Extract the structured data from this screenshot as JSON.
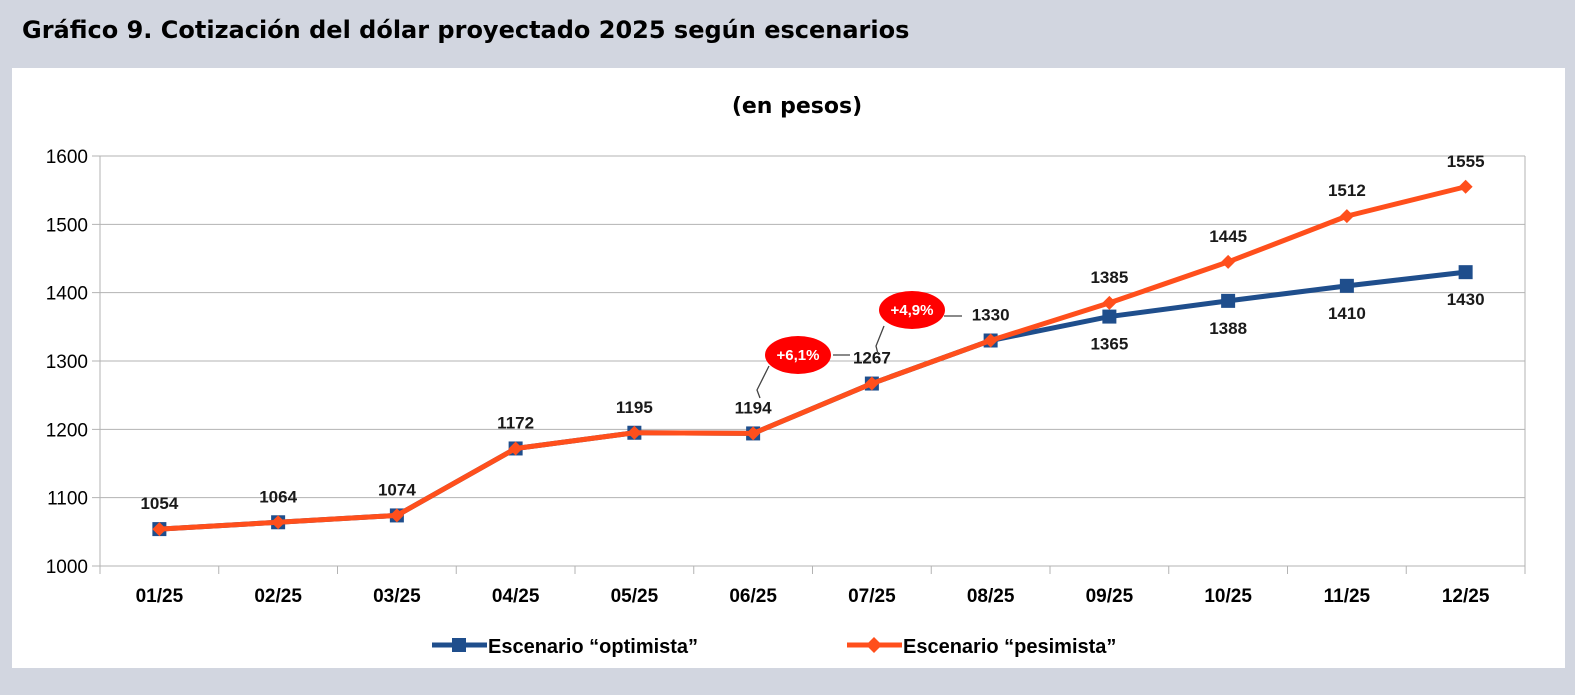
{
  "header": {
    "title": "Gráfico 9. Cotización del dólar proyectado 2025 según escenarios"
  },
  "chart_data": {
    "type": "line",
    "title": "Gráfico 9. Cotización del dólar proyectado 2025 según escenarios",
    "subtitle": "(en pesos)",
    "xlabel": "",
    "ylabel": "",
    "categories": [
      "01/25",
      "02/25",
      "03/25",
      "04/25",
      "05/25",
      "06/25",
      "07/25",
      "08/25",
      "09/25",
      "10/25",
      "11/25",
      "12/25"
    ],
    "ylim": [
      1000,
      1600
    ],
    "yticks": [
      1000,
      1100,
      1200,
      1300,
      1400,
      1500,
      1600
    ],
    "grid": true,
    "legend_position": "bottom",
    "series": [
      {
        "name": "Escenario “optimista”",
        "color": "#1f4e8c",
        "marker": "square",
        "values": [
          1054,
          1064,
          1074,
          1172,
          1195,
          1194,
          1267,
          1330,
          1365,
          1388,
          1410,
          1430
        ],
        "labels": [
          "",
          "",
          "",
          "",
          "",
          "",
          "",
          "",
          "1365",
          "1388",
          "1410",
          "1430"
        ]
      },
      {
        "name": "Escenario “pesimista”",
        "color": "#ff4f1c",
        "marker": "diamond",
        "values": [
          1054,
          1064,
          1074,
          1172,
          1195,
          1194,
          1267,
          1330,
          1385,
          1445,
          1512,
          1555
        ],
        "labels": [
          "1054",
          "1064",
          "1074",
          "1172",
          "1195",
          "1194",
          "1267",
          "1330",
          "1385",
          "1445",
          "1512",
          "1555"
        ]
      }
    ],
    "annotations": [
      {
        "text": "+6,1%",
        "color": "#ff0000",
        "category": "06/25"
      },
      {
        "text": "+4,9%",
        "color": "#ff0000",
        "category": "07/25"
      }
    ]
  }
}
